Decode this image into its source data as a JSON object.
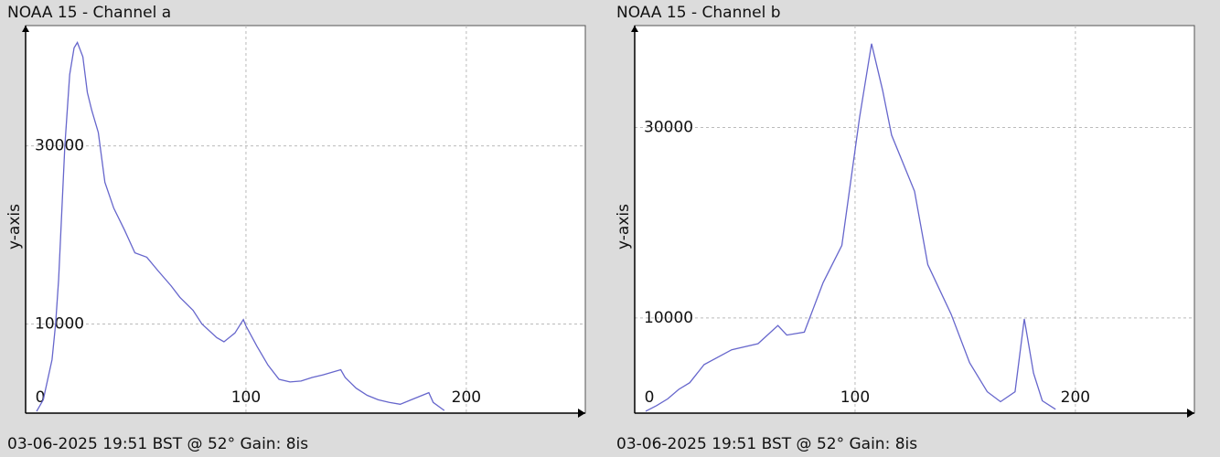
{
  "chart_data": [
    {
      "type": "line",
      "title": "NOAA 15 - Channel a",
      "ylabel": "y-axis",
      "caption": "03-06-2025 19:51 BST @ 52° Gain: 8is",
      "color": "#6666cc",
      "x": [
        5,
        8,
        12,
        13.6,
        15,
        17.8,
        20,
        22,
        23.5,
        26,
        28,
        30,
        33,
        36,
        40,
        45,
        49.6,
        55,
        60,
        66,
        70,
        76,
        80,
        86.8,
        90,
        95,
        98.8,
        100,
        105,
        110,
        115,
        120,
        125,
        130,
        135,
        143,
        145,
        150,
        155,
        160,
        165,
        170,
        175,
        183,
        185,
        190
      ],
      "values": [
        200,
        1500,
        6000,
        10000,
        15000,
        30000,
        38000,
        41000,
        41600,
        40000,
        36000,
        34000,
        31500,
        25900,
        23000,
        20500,
        18000,
        17500,
        16000,
        14300,
        13000,
        11540,
        10000,
        8460,
        8000,
        9000,
        10500,
        9800,
        7500,
        5400,
        3800,
        3500,
        3600,
        4000,
        4300,
        4870,
        4000,
        2800,
        2000,
        1500,
        1200,
        1000,
        1500,
        2300,
        1200,
        300
      ],
      "xlim": [
        0,
        254
      ],
      "ylim": [
        0,
        43500
      ],
      "xticks": [
        0,
        100,
        200
      ],
      "yticks": [
        10000,
        30000
      ],
      "grid": true
    },
    {
      "type": "line",
      "title": "NOAA 15 - Channel b",
      "ylabel": "y-axis",
      "caption": "03-06-2025 19:51 BST @ 52° Gain: 8is",
      "color": "#6666cc",
      "x": [
        5,
        10,
        15,
        20,
        25,
        31.5,
        44,
        56,
        65,
        69,
        77,
        85.5,
        94,
        102,
        107.5,
        112.5,
        116.6,
        127,
        133,
        143.6,
        152,
        160,
        166,
        172.6,
        176.8,
        181,
        185,
        191
      ],
      "values": [
        200,
        800,
        1500,
        2500,
        3200,
        5100,
        6650,
        7300,
        9200,
        8200,
        8500,
        13700,
        17600,
        31000,
        38800,
        33900,
        29200,
        23300,
        15600,
        10400,
        5300,
        2250,
        1200,
        2250,
        9900,
        4200,
        1300,
        400
      ],
      "xlim": [
        0,
        254
      ],
      "ylim": [
        0,
        40700
      ],
      "xticks": [
        0,
        100,
        200
      ],
      "yticks": [
        10000,
        30000
      ],
      "grid": true
    }
  ]
}
